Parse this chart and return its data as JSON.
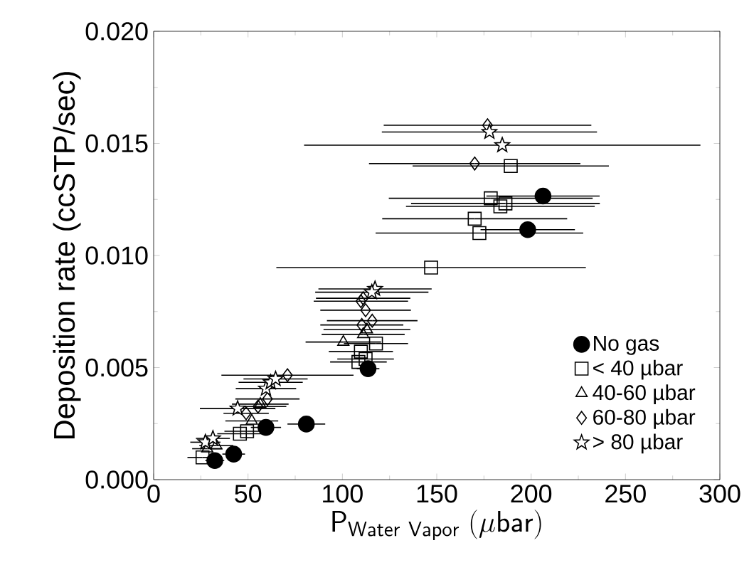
{
  "chart_data": {
    "type": "scatter",
    "xlabel": "\\mathsf{P_{Water\\ Vapor}\\ (\\mu bar)}",
    "ylabel": "Deposition rate (ccSTP/sec)",
    "xlim": [
      0,
      300
    ],
    "xticks": [
      0,
      50,
      100,
      150,
      200,
      250,
      300
    ],
    "ylim": [
      0,
      0.02
    ],
    "yticks": [
      {
        "value": 0,
        "label": "0.000"
      },
      {
        "value": 0.005,
        "label": "0.005"
      },
      {
        "value": 0.01,
        "label": "0.010"
      },
      {
        "value": 0.015,
        "label": "0.015"
      },
      {
        "value": 0.02,
        "label": "0.020"
      }
    ],
    "grid": false,
    "legend": "bottom right",
    "series": [
      {
        "name": "No gas",
        "color": "#000000",
        "marker": "circle",
        "x": [
          32.4,
          42.4,
          59.5,
          80.9,
          113.6,
          198.2,
          206.3
        ],
        "values": [
          0.00085,
          0.00114,
          0.00233,
          0.00248,
          0.00495,
          0.01115,
          0.01265
        ],
        "xerrors": [
          5,
          6,
          8,
          10,
          6,
          25,
          30
        ]
      },
      {
        "name": "< 40 µbar",
        "color": "#000000",
        "marker": "square",
        "x": [
          25.9,
          45.7,
          49.5,
          108.5,
          112.3,
          109.8,
          117.8,
          147,
          172.6,
          170.1,
          183.7,
          186.4,
          178.6,
          189.2
        ],
        "values": [
          0.00099,
          0.00205,
          0.00216,
          0.00525,
          0.00538,
          0.00571,
          0.00607,
          0.00946,
          0.011,
          0.01164,
          0.01219,
          0.01232,
          0.01255,
          0.01399
        ],
        "xerrors": [
          8,
          12,
          12,
          15,
          15,
          17,
          17,
          82,
          55,
          49,
          50,
          50,
          54,
          52
        ]
      },
      {
        "name": "40-60 µbar",
        "color": "#000000",
        "marker": "triangle",
        "x": [
          28.4,
          33.2,
          52,
          56.5,
          100.5,
          111,
          113
        ],
        "values": [
          0.00138,
          0.00152,
          0.00262,
          0.00337,
          0.00614,
          0.00648,
          0.00669
        ],
        "xerrors": [
          8,
          9,
          14,
          15,
          20,
          22,
          23
        ]
      },
      {
        "name": "60-80 µbar",
        "color": "#000000",
        "marker": "diamond",
        "x": [
          49,
          55.3,
          60.3,
          70.9,
          110.3,
          115.8,
          112.3,
          109.8,
          111,
          170.1,
          176.9
        ],
        "values": [
          0.00296,
          0.00326,
          0.0036,
          0.00466,
          0.0069,
          0.00709,
          0.00756,
          0.00796,
          0.00809,
          0.0141,
          0.01581
        ],
        "xerrors": [
          12,
          15,
          17,
          35,
          22,
          24,
          24,
          25,
          25,
          56,
          55
        ]
      },
      {
        "name": "> 80 µbar",
        "color": "#000000",
        "marker": "star",
        "x": [
          27.4,
          31.4,
          44.5,
          59.5,
          62,
          64.6,
          117.3,
          115.6,
          177.9,
          184.7
        ],
        "values": [
          0.00167,
          0.00184,
          0.00317,
          0.00406,
          0.00434,
          0.00449,
          0.00851,
          0.00836,
          0.01551,
          0.01492
        ],
        "xerrors": [
          8,
          9,
          20,
          16,
          17,
          17,
          30,
          30,
          57,
          105
        ]
      }
    ]
  }
}
